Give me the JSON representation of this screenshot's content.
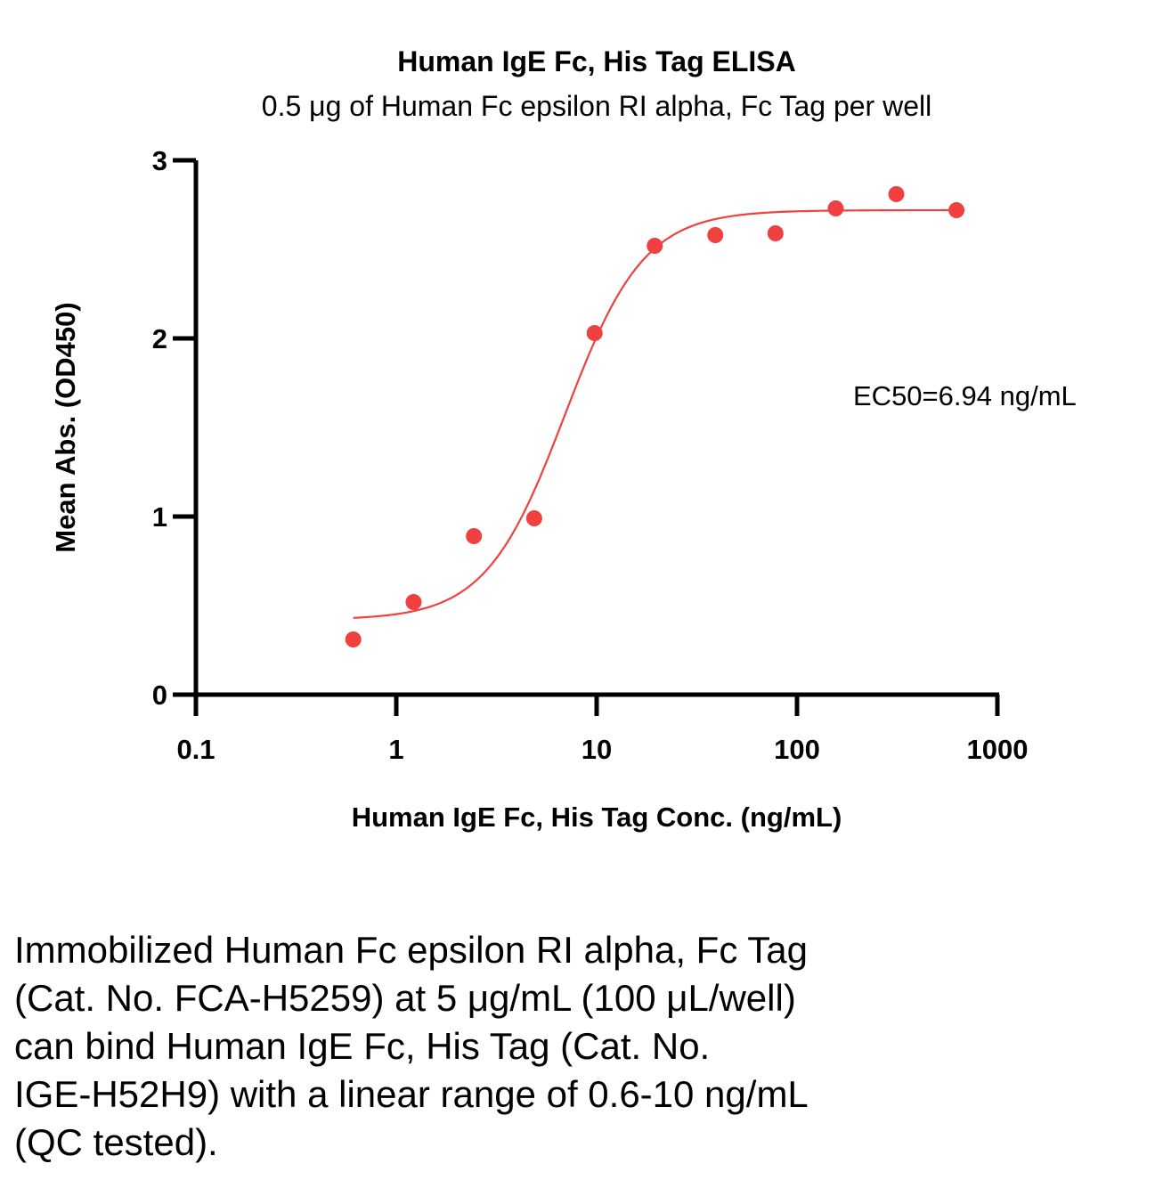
{
  "chart_data": {
    "type": "scatter",
    "title": "Human IgE Fc, His Tag ELISA",
    "subtitle": "0.5 μg of Human Fc epsilon RI alpha, Fc Tag per well",
    "xlabel": "Human IgE Fc, His Tag Conc. (ng/mL)",
    "ylabel": "Mean Abs. (OD450)",
    "x_scale": "log",
    "xlim": [
      0.1,
      1000
    ],
    "ylim": [
      0,
      3
    ],
    "x_ticks": [
      "0.1",
      "1",
      "10",
      "100",
      "1000"
    ],
    "y_ticks": [
      "0",
      "1",
      "2",
      "3"
    ],
    "grid": false,
    "series": [
      {
        "x": [
          0.61,
          1.22,
          2.44,
          4.88,
          9.77,
          19.5,
          39.1,
          78.1,
          156,
          313,
          625
        ],
        "y": [
          0.31,
          0.52,
          0.89,
          0.99,
          2.03,
          2.52,
          2.58,
          2.59,
          2.73,
          2.81,
          2.72
        ],
        "color": "#f04040",
        "fit": {
          "model": "4PL",
          "bottom": 0.42,
          "top": 2.72,
          "ec50": 6.94,
          "hill": 2.2
        }
      }
    ],
    "annotation": "EC50=6.94 ng/mL"
  },
  "caption_lines": [
    "Immobilized Human Fc epsilon RI alpha, Fc Tag",
    "(Cat. No. FCA-H5259) at 5 μg/mL (100 μL/well)",
    "can bind Human IgE Fc, His Tag (Cat. No.",
    "IGE-H52H9) with a linear range of 0.6-10 ng/mL",
    "(QC tested)."
  ]
}
